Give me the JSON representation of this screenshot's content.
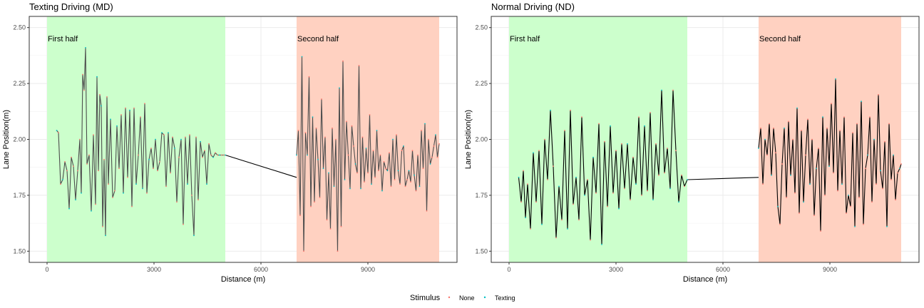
{
  "chart_data": [
    {
      "type": "line",
      "title": "Texting Driving (MD)",
      "xlabel": "Distance (m)",
      "ylabel": "Lane Position(m)",
      "xlim": [
        -500,
        11500
      ],
      "ylim": [
        1.45,
        2.55
      ],
      "xticks": [
        0,
        3000,
        6000,
        9000
      ],
      "xtick_labels": [
        "0",
        "3000",
        "6000",
        "9000"
      ],
      "yticks": [
        1.5,
        1.75,
        2.0,
        2.25,
        2.5
      ],
      "ytick_labels": [
        "1.50",
        "1.75",
        "2.00",
        "2.25",
        "2.50"
      ],
      "grid": true,
      "regions": [
        {
          "label": "First half",
          "x0": 0,
          "x1": 5000,
          "color": "#ccffcc"
        },
        {
          "label": "Second half",
          "x0": 7000,
          "x1": 11000,
          "color": "#ffd1c1"
        }
      ],
      "line_color": "#4d4d4d",
      "series": [
        {
          "name": "None",
          "color": "#f8766d"
        },
        {
          "name": "Texting",
          "color": "#00bfc4"
        }
      ],
      "segment_first": {
        "x": [
          270,
          320,
          380,
          440,
          500,
          560,
          620,
          680,
          740,
          800,
          860,
          920,
          960,
          1000,
          1040,
          1080,
          1120,
          1180,
          1240,
          1300,
          1360,
          1400,
          1440,
          1480,
          1520,
          1560,
          1600,
          1640,
          1680,
          1720,
          1780,
          1840,
          1900,
          1960,
          2020,
          2080,
          2140,
          2200,
          2260,
          2320,
          2380,
          2440,
          2500,
          2560,
          2620,
          2680,
          2740,
          2800,
          2860,
          2920,
          2980,
          3040,
          3100,
          3160,
          3220,
          3280,
          3340,
          3400,
          3460,
          3520,
          3580,
          3640,
          3700,
          3760,
          3820,
          3880,
          3940,
          4000,
          4060,
          4120,
          4180,
          4240,
          4300,
          4360,
          4420,
          4480,
          4540,
          4600,
          4660,
          4720,
          4780,
          4840,
          4900,
          4960,
          5000
        ],
        "y": [
          2.04,
          2.03,
          1.8,
          1.82,
          1.9,
          1.86,
          1.69,
          1.92,
          1.88,
          1.73,
          1.86,
          2.0,
          1.76,
          2.29,
          2.22,
          2.41,
          1.89,
          1.93,
          1.68,
          2.02,
          1.71,
          2.28,
          1.86,
          2.2,
          2.15,
          1.61,
          1.91,
          1.57,
          2.19,
          1.8,
          2.09,
          1.74,
          1.77,
          2.06,
          1.87,
          2.11,
          1.76,
          2.14,
          1.83,
          2.13,
          1.7,
          2.14,
          1.8,
          1.93,
          2.1,
          1.78,
          2.16,
          1.76,
          1.91,
          1.96,
          1.87,
          2.0,
          1.86,
          1.9,
          2.03,
          2.02,
          1.79,
          2.03,
          1.85,
          2.01,
          1.96,
          1.72,
          1.92,
          2.0,
          1.62,
          2.01,
          1.8,
          2.02,
          1.75,
          1.57,
          2.01,
          1.73,
          1.99,
          1.92,
          1.95,
          1.8,
          1.98,
          1.93,
          1.92,
          1.94,
          1.93,
          1.93,
          1.93,
          1.93,
          1.93
        ]
      },
      "segment_gap": {
        "x": [
          5000,
          7000
        ],
        "y": [
          1.93,
          1.83
        ]
      },
      "segment_second": {
        "x": [
          7000,
          7050,
          7100,
          7150,
          7200,
          7250,
          7300,
          7350,
          7400,
          7450,
          7500,
          7550,
          7600,
          7650,
          7700,
          7750,
          7800,
          7850,
          7900,
          7950,
          8000,
          8050,
          8100,
          8150,
          8200,
          8250,
          8300,
          8350,
          8400,
          8450,
          8500,
          8550,
          8600,
          8650,
          8700,
          8750,
          8800,
          8850,
          8900,
          8950,
          9000,
          9050,
          9100,
          9150,
          9200,
          9250,
          9300,
          9350,
          9400,
          9450,
          9500,
          9550,
          9600,
          9650,
          9700,
          9750,
          9800,
          9850,
          9900,
          9950,
          10000,
          10050,
          10100,
          10150,
          10200,
          10250,
          10300,
          10350,
          10400,
          10450,
          10500,
          10550,
          10600,
          10650,
          10700,
          10750,
          10800,
          10850,
          10900,
          10950,
          11000
        ],
        "y": [
          1.93,
          2.04,
          1.66,
          2.37,
          1.5,
          2.03,
          1.93,
          2.28,
          1.7,
          2.1,
          1.72,
          2.05,
          1.91,
          1.74,
          2.18,
          1.87,
          2.01,
          1.64,
          1.85,
          1.6,
          2.05,
          1.79,
          2.0,
          1.5,
          2.23,
          1.61,
          2.35,
          1.82,
          2.08,
          1.93,
          1.78,
          2.06,
          1.97,
          1.89,
          1.85,
          2.33,
          1.78,
          2.01,
          1.81,
          1.96,
          1.85,
          2.11,
          1.8,
          1.95,
          1.83,
          2.04,
          1.86,
          1.93,
          1.77,
          1.9,
          1.87,
          1.86,
          1.94,
          1.79,
          2.0,
          1.82,
          2.02,
          1.86,
          1.8,
          1.95,
          1.97,
          1.79,
          1.82,
          1.86,
          1.81,
          1.95,
          1.84,
          1.77,
          1.93,
          1.79,
          2.04,
          1.87,
          2.07,
          1.68,
          2.0,
          1.89,
          1.92,
          1.97,
          2.02,
          1.92,
          1.98
        ]
      }
    },
    {
      "type": "line",
      "title": "Normal Driving (ND)",
      "xlabel": "Distance (m)",
      "ylabel": "Lane Position(m)",
      "xlim": [
        -500,
        11500
      ],
      "ylim": [
        1.45,
        2.55
      ],
      "xticks": [
        0,
        3000,
        6000,
        9000
      ],
      "xtick_labels": [
        "0",
        "3000",
        "6000",
        "9000"
      ],
      "yticks": [
        1.5,
        1.75,
        2.0,
        2.25,
        2.5
      ],
      "ytick_labels": [
        "1.50",
        "1.75",
        "2.00",
        "2.25",
        "2.50"
      ],
      "grid": true,
      "regions": [
        {
          "label": "First half",
          "x0": 0,
          "x1": 5000,
          "color": "#ccffcc"
        },
        {
          "label": "Second half",
          "x0": 7000,
          "x1": 11000,
          "color": "#ffd1c1"
        }
      ],
      "line_color": "#000000",
      "series": [
        {
          "name": "None",
          "color": "#f8766d"
        },
        {
          "name": "Texting",
          "color": "#00bfc4"
        }
      ],
      "segment_first": {
        "x": [
          270,
          340,
          400,
          460,
          520,
          600,
          680,
          760,
          840,
          920,
          1000,
          1080,
          1160,
          1240,
          1320,
          1400,
          1480,
          1560,
          1640,
          1720,
          1800,
          1880,
          1960,
          2040,
          2120,
          2200,
          2280,
          2360,
          2440,
          2520,
          2600,
          2680,
          2760,
          2840,
          2920,
          3000,
          3080,
          3160,
          3240,
          3320,
          3400,
          3480,
          3560,
          3640,
          3720,
          3800,
          3880,
          3960,
          4040,
          4120,
          4200,
          4280,
          4360,
          4440,
          4520,
          4600,
          4680,
          4760,
          4840,
          4920,
          5000
        ],
        "y": [
          1.83,
          1.72,
          1.86,
          1.65,
          1.8,
          1.6,
          1.94,
          1.72,
          1.95,
          1.62,
          2.0,
          1.82,
          2.13,
          1.88,
          1.56,
          1.79,
          1.64,
          2.04,
          1.6,
          2.13,
          1.71,
          1.83,
          1.64,
          2.1,
          1.75,
          1.82,
          1.55,
          1.92,
          1.76,
          2.07,
          1.53,
          1.99,
          1.7,
          2.06,
          1.76,
          1.95,
          1.69,
          1.98,
          1.78,
          1.98,
          1.73,
          1.92,
          1.8,
          2.1,
          1.75,
          2.06,
          1.77,
          2.12,
          1.73,
          1.98,
          1.84,
          2.22,
          1.85,
          1.96,
          1.78,
          2.22,
          1.95,
          1.72,
          1.84,
          1.79,
          1.82
        ]
      },
      "segment_gap": {
        "x": [
          5000,
          7000
        ],
        "y": [
          1.82,
          1.83
        ]
      },
      "segment_second": {
        "x": [
          7000,
          7060,
          7120,
          7180,
          7240,
          7300,
          7360,
          7420,
          7480,
          7540,
          7600,
          7660,
          7720,
          7780,
          7840,
          7900,
          7960,
          8020,
          8080,
          8140,
          8200,
          8260,
          8320,
          8380,
          8440,
          8500,
          8560,
          8620,
          8680,
          8740,
          8800,
          8860,
          8920,
          8980,
          9040,
          9100,
          9160,
          9220,
          9280,
          9340,
          9400,
          9460,
          9520,
          9580,
          9640,
          9700,
          9760,
          9820,
          9880,
          9940,
          10000,
          10060,
          10120,
          10180,
          10240,
          10300,
          10360,
          10420,
          10480,
          10540,
          10600,
          10660,
          10720,
          10780,
          10840,
          10900,
          10960,
          11000
        ],
        "y": [
          1.96,
          2.05,
          1.8,
          2.0,
          1.93,
          2.07,
          1.84,
          2.05,
          1.94,
          1.7,
          1.62,
          1.89,
          2.05,
          1.74,
          2.08,
          1.84,
          2.0,
          1.76,
          2.14,
          1.67,
          2.04,
          1.72,
          1.93,
          2.09,
          1.8,
          2.0,
          1.66,
          1.87,
          1.96,
          1.59,
          2.1,
          1.75,
          2.05,
          1.88,
          2.16,
          1.85,
          2.27,
          1.77,
          2.04,
          1.8,
          2.1,
          1.67,
          1.75,
          1.7,
          2.03,
          1.61,
          2.07,
          1.74,
          2.17,
          1.62,
          1.87,
          1.93,
          2.1,
          1.72,
          2.0,
          1.8,
          2.2,
          1.86,
          1.78,
          1.99,
          1.61,
          2.07,
          1.82,
          1.93,
          1.73,
          1.85,
          1.87,
          1.89
        ]
      }
    }
  ],
  "legend": {
    "title": "Stimulus",
    "items": [
      {
        "label": "None",
        "color": "#f8766d"
      },
      {
        "label": "Texting",
        "color": "#00bfc4"
      }
    ]
  }
}
